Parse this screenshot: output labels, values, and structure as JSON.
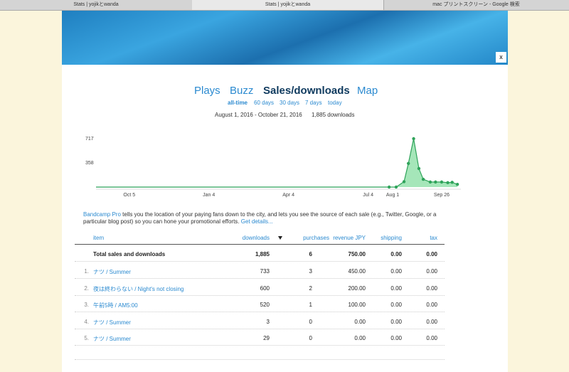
{
  "tabs": [
    "Stats | yojikとwanda",
    "Stats | yojikとwanda",
    "mac プリントスクリーン - Google 検索"
  ],
  "close_button": "x",
  "nav": {
    "items": [
      "Plays",
      "Buzz",
      "Sales/downloads",
      "Map"
    ],
    "periods": [
      "all-time",
      "60 days",
      "30 days",
      "7 days",
      "today"
    ],
    "date_range": "August 1, 2016 - October 21, 2016",
    "total": "1,885 downloads"
  },
  "chart_data": {
    "type": "area",
    "x": [
      -38,
      297,
      305,
      314,
      319,
      325,
      331,
      336,
      344,
      350,
      357,
      364,
      369,
      375
    ],
    "series": [
      {
        "name": "downloads",
        "color": "#2fa35a",
        "values": [
          0,
          0,
          0,
          80,
          350,
          717,
          275,
          115,
          75,
          75,
          75,
          65,
          70,
          40
        ]
      }
    ],
    "xlim": [
      -38,
      379
    ],
    "ylim": [
      0,
      717
    ],
    "xticks": [
      {
        "value": 0,
        "label": "Oct 5"
      },
      {
        "value": 91,
        "label": "Jan 4"
      },
      {
        "value": 182,
        "label": "Apr 4"
      },
      {
        "value": 273,
        "label": "Jul 4"
      },
      {
        "value": 301,
        "label": "Aug 1"
      },
      {
        "value": 357,
        "label": "Sep 26"
      }
    ],
    "yticks": [
      358,
      717
    ]
  },
  "description": {
    "link": "Bandcamp Pro",
    "text": " tells you the location of your paying fans down to the city, and lets you see the source of each sale (e.g., Twitter, Google, or a particular blog post) so you can hone your promotional efforts. ",
    "details": "Get details..."
  },
  "table": {
    "header": [
      "item",
      "downloads",
      "purchases",
      "revenue JPY",
      "shipping",
      "tax"
    ],
    "total": [
      "Total sales and downloads",
      "1,885",
      "6",
      "750.00",
      "0.00",
      "0.00"
    ],
    "rows": [
      [
        "1.",
        "ナツ / Summer",
        "733",
        "3",
        "450.00",
        "0.00",
        "0.00"
      ],
      [
        "2.",
        "夜は終わらない / Night's not closing",
        "600",
        "2",
        "200.00",
        "0.00",
        "0.00"
      ],
      [
        "3.",
        "午前5時 / AM5:00",
        "520",
        "1",
        "100.00",
        "0.00",
        "0.00"
      ],
      [
        "4.",
        "ナツ / Summer",
        "3",
        "0",
        "0.00",
        "0.00",
        "0.00"
      ],
      [
        "5.",
        "ナツ / Summer",
        "29",
        "0",
        "0.00",
        "0.00",
        "0.00"
      ]
    ]
  }
}
